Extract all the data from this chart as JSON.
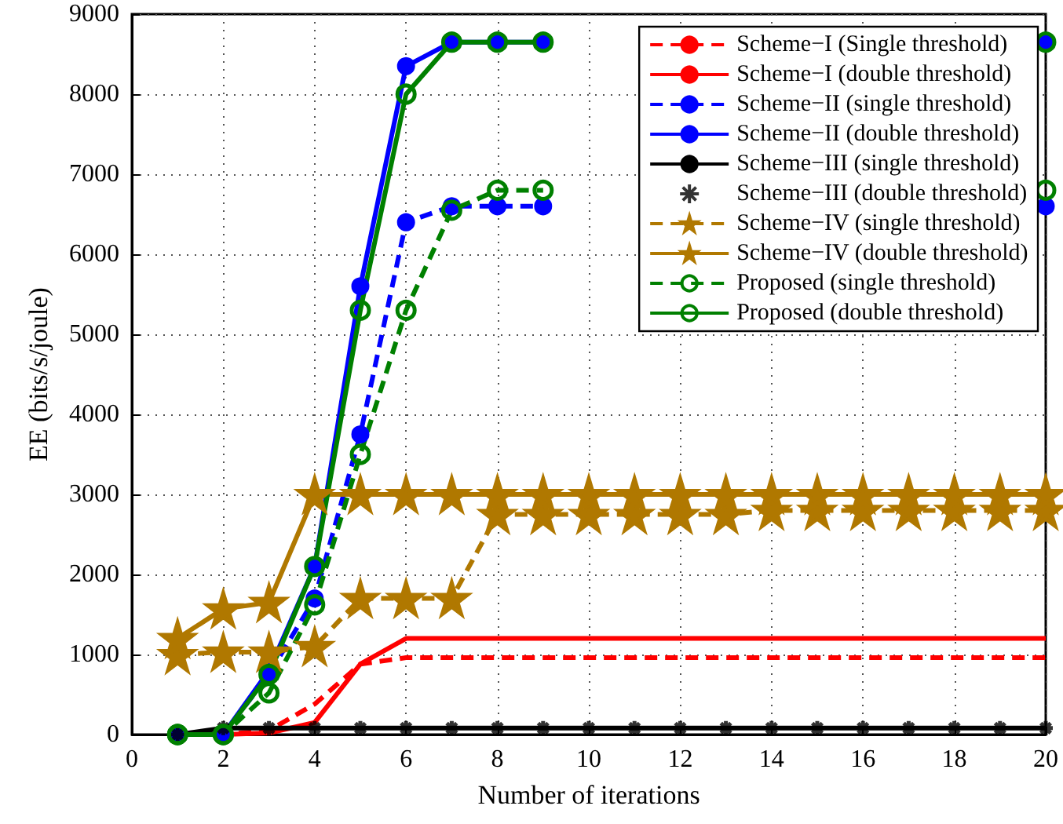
{
  "chart_data": {
    "type": "line",
    "xlabel": "Number of iterations",
    "ylabel": "EE (bits/s/joule)",
    "x": [
      1,
      2,
      3,
      4,
      5,
      6,
      7,
      8,
      9,
      10,
      11,
      12,
      13,
      14,
      15,
      16,
      17,
      18,
      19,
      20
    ],
    "xlim": [
      0,
      20
    ],
    "xticks": [
      0,
      2,
      4,
      6,
      8,
      10,
      12,
      14,
      16,
      18,
      20
    ],
    "ylim": [
      0,
      9000
    ],
    "yticks": [
      0,
      1000,
      2000,
      3000,
      4000,
      5000,
      6000,
      7000,
      8000,
      9000
    ],
    "grid": true,
    "legend": "top right",
    "series": [
      {
        "name": "Scheme−I (Single threshold)",
        "color": "#ff0000",
        "line_style": "dashed",
        "marker": "none",
        "values": [
          0,
          0,
          50,
          380,
          880,
          960,
          960,
          960,
          960,
          960,
          960,
          960,
          960,
          960,
          960,
          960,
          960,
          960,
          960,
          960
        ]
      },
      {
        "name": "Scheme−I (double threshold)",
        "color": "#ff0000",
        "line_style": "solid",
        "marker": "none",
        "values": [
          0,
          0,
          20,
          150,
          880,
          1200,
          1200,
          1200,
          1200,
          1200,
          1200,
          1200,
          1200,
          1200,
          1200,
          1200,
          1200,
          1200,
          1200,
          1200
        ]
      },
      {
        "name": "Scheme−II (single threshold)",
        "color": "#0000ff",
        "line_style": "dashed",
        "marker": "circle",
        "values": [
          0,
          0,
          750,
          1700,
          3750,
          6400,
          6600,
          6600,
          6600,
          null,
          null,
          null,
          null,
          null,
          null,
          null,
          null,
          null,
          null,
          6600
        ]
      },
      {
        "name": "Scheme−II (double threshold)",
        "color": "#0000ff",
        "line_style": "solid",
        "marker": "circle",
        "values": [
          0,
          0,
          800,
          2100,
          5600,
          8350,
          8650,
          8650,
          8650,
          null,
          null,
          null,
          null,
          null,
          null,
          null,
          null,
          null,
          null,
          8650
        ]
      },
      {
        "name": "Scheme−III (single threshold)",
        "color": "#000000",
        "line_style": "solid",
        "marker": "none",
        "values": [
          0,
          80,
          80,
          80,
          80,
          80,
          80,
          80,
          80,
          80,
          80,
          80,
          80,
          80,
          80,
          80,
          80,
          80,
          80,
          80
        ]
      },
      {
        "name": "Scheme−III (double threshold)",
        "type": "scatter",
        "color": "#000000",
        "marker": "cross",
        "values": [
          0,
          80,
          80,
          80,
          80,
          80,
          80,
          80,
          80,
          80,
          80,
          80,
          80,
          80,
          80,
          80,
          80,
          80,
          80,
          80
        ]
      },
      {
        "name": "Scheme−IV (single threshold)",
        "color": "#b07800",
        "line_style": "dashed",
        "marker": "star",
        "values": [
          1000,
          1030,
          1030,
          1100,
          1700,
          1700,
          1700,
          2750,
          2750,
          2750,
          2750,
          2750,
          2750,
          2800,
          2800,
          2800,
          2800,
          2800,
          2800,
          2800
        ]
      },
      {
        "name": "Scheme−IV (double threshold)",
        "color": "#b07800",
        "line_style": "solid",
        "marker": "star",
        "values": [
          1200,
          1570,
          1650,
          3000,
          3000,
          3000,
          3000,
          3000,
          3000,
          3000,
          3000,
          3000,
          3000,
          3000,
          3000,
          3000,
          3000,
          3000,
          3000,
          3000
        ]
      },
      {
        "name": "Proposed (single threshold)",
        "color": "#008000",
        "line_style": "dashed",
        "marker": "circle_open",
        "values": [
          0,
          0,
          520,
          1620,
          3500,
          5300,
          6550,
          6800,
          6800,
          null,
          null,
          null,
          null,
          null,
          null,
          null,
          null,
          null,
          null,
          6800
        ]
      },
      {
        "name": "Proposed (double threshold)",
        "color": "#008000",
        "line_style": "solid",
        "marker": "circle_open",
        "values": [
          0,
          0,
          750,
          2100,
          5300,
          8000,
          8650,
          8650,
          8650,
          null,
          null,
          null,
          null,
          null,
          null,
          null,
          null,
          null,
          null,
          8650
        ]
      }
    ]
  }
}
